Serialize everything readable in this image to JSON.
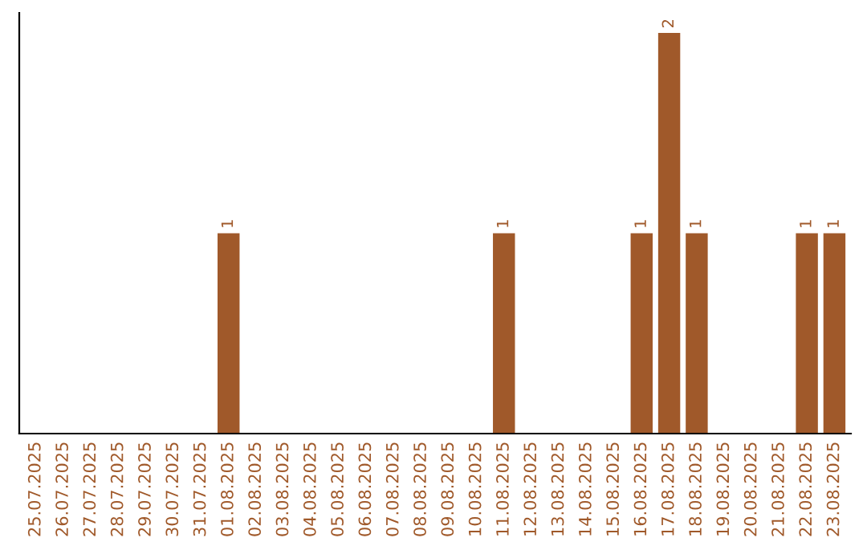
{
  "chart_data": {
    "type": "bar",
    "categories": [
      "25.07.2025",
      "26.07.2025",
      "27.07.2025",
      "28.07.2025",
      "29.07.2025",
      "30.07.2025",
      "31.07.2025",
      "01.08.2025",
      "02.08.2025",
      "03.08.2025",
      "04.08.2025",
      "05.08.2025",
      "06.08.2025",
      "07.08.2025",
      "08.08.2025",
      "09.08.2025",
      "10.08.2025",
      "11.08.2025",
      "12.08.2025",
      "13.08.2025",
      "14.08.2025",
      "15.08.2025",
      "16.08.2025",
      "17.08.2025",
      "18.08.2025",
      "19.08.2025",
      "20.08.2025",
      "21.08.2025",
      "22.08.2025",
      "23.08.2025"
    ],
    "values": [
      0,
      0,
      0,
      0,
      0,
      0,
      0,
      1,
      0,
      0,
      0,
      0,
      0,
      0,
      0,
      0,
      0,
      1,
      0,
      0,
      0,
      0,
      1,
      2,
      1,
      0,
      0,
      0,
      1,
      1
    ],
    "value_labels": [
      null,
      null,
      null,
      null,
      null,
      null,
      null,
      "1",
      null,
      null,
      null,
      null,
      null,
      null,
      null,
      null,
      null,
      "1",
      null,
      null,
      null,
      null,
      "1",
      "2",
      "1",
      null,
      null,
      null,
      "1",
      "1"
    ],
    "color": "#a0592a",
    "ylim": [
      0,
      2.1
    ],
    "tick_labels": "x",
    "grid": false,
    "legend": false
  }
}
